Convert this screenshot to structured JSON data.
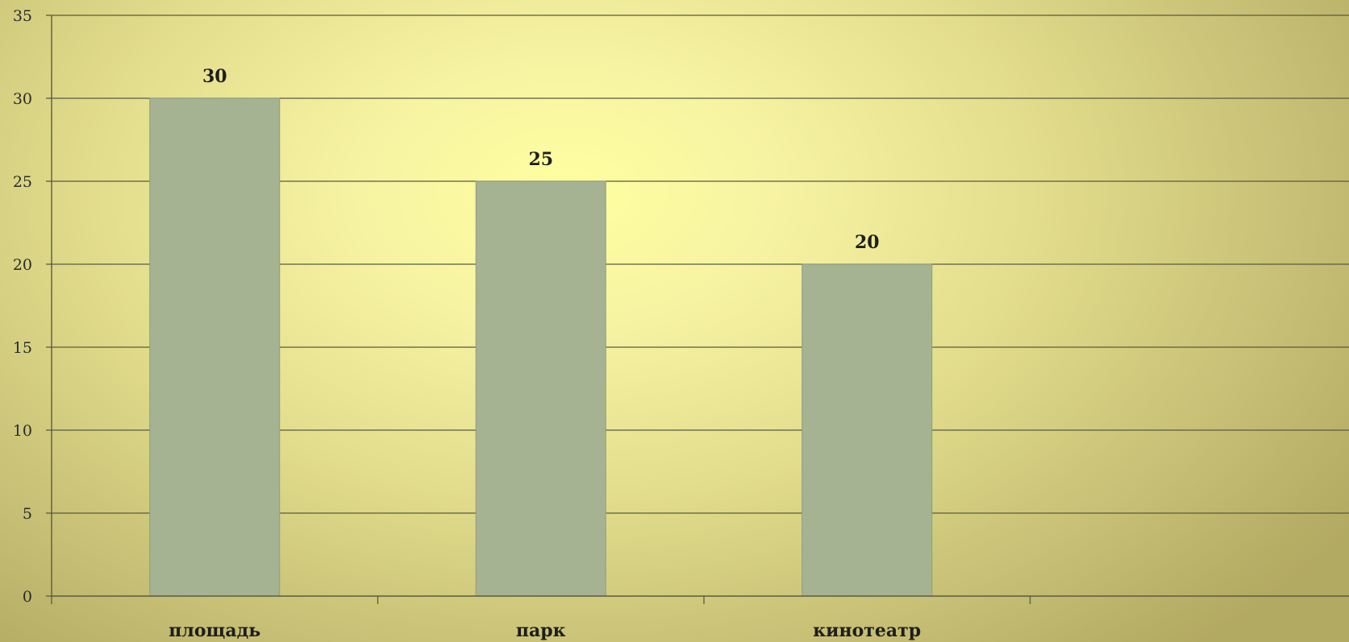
{
  "chart_data": {
    "type": "bar",
    "categories": [
      "площадь",
      "парк",
      "кинотеатр",
      ""
    ],
    "values": [
      30,
      25,
      20,
      null
    ],
    "title": "",
    "xlabel": "",
    "ylabel": "",
    "ylim": [
      0,
      35
    ],
    "yticks": [
      0,
      5,
      10,
      15,
      20,
      25,
      30,
      35
    ],
    "grid": true,
    "legend": "none",
    "data_labels": true,
    "colors": {
      "bar": "#a5b393",
      "bar_stroke": "#8e9c7e",
      "grid": "#5a5a45",
      "axis": "#5a5a45",
      "text": "#1e1e1e"
    }
  }
}
